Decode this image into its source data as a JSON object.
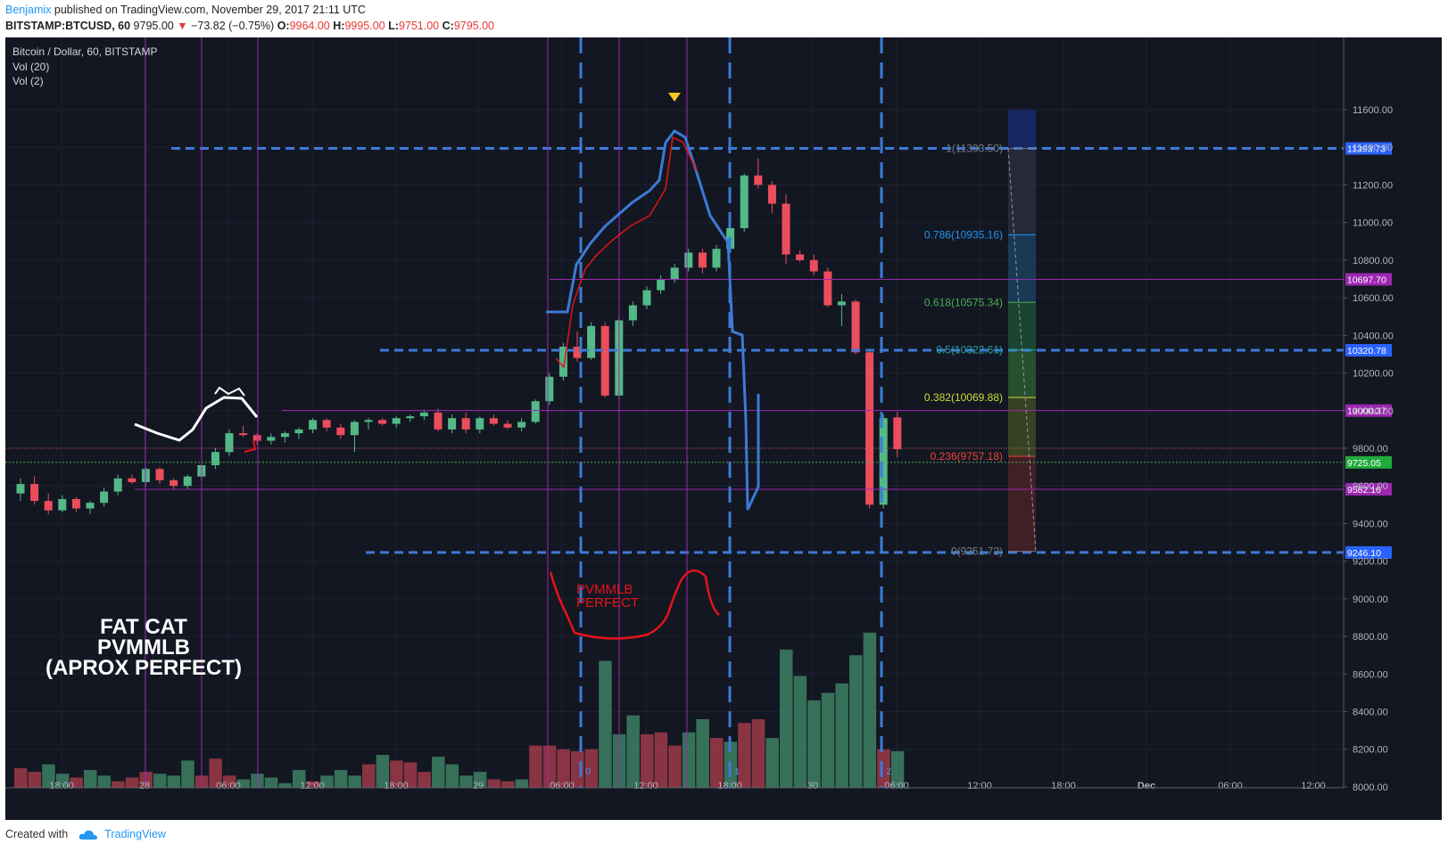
{
  "header": {
    "author": "Benjamix",
    "published": "published on TradingView.com, November 29, 2017 21:11 UTC",
    "symbol": "BITSTAMP:BTCUSD, 60",
    "last": "9795.00",
    "change": "−73.82 (−0.75%)",
    "o_label": "O:",
    "o": "9964.00",
    "h_label": "H:",
    "h": "9995.00",
    "l_label": "L:",
    "l": "9751.00",
    "c_label": "C:",
    "c": "9795.00"
  },
  "legend": {
    "title": "Bitcoin / Dollar, 60, BITSTAMP",
    "vol20": "Vol (20)",
    "vol2": "Vol (2)"
  },
  "annotation": {
    "text_lines": [
      "FAT CAT",
      "PVMMLB",
      "(APROX PERFECT)"
    ],
    "red_lines": [
      "PVMMLB",
      "PERFECT"
    ]
  },
  "footer": {
    "created_with": "Created with",
    "brand": "TradingView"
  },
  "colors": {
    "background": "#131722",
    "up": "#53b987",
    "down": "#eb4d5c",
    "guide": "#3c7ad6",
    "purple": "#9c27b0",
    "annotation_red": "#e5131a"
  },
  "chart_data": {
    "type": "candlestick",
    "title": "Bitcoin / Dollar, 60, BITSTAMP",
    "ylim": [
      7850,
      11900
    ],
    "y_ticks": [
      8000,
      8200,
      8400,
      8600,
      8800,
      9000,
      9200,
      9400,
      9600,
      9800,
      10000,
      10200,
      10400,
      10600,
      10800,
      11000,
      11200,
      11400,
      11600
    ],
    "y_tick_labels": [
      "8000.00",
      "8200.00",
      "8400.00",
      "8600.00",
      "8800.00",
      "9000.00",
      "9200.00",
      "9400.00",
      "9600.00",
      "9800.00",
      "10000.00",
      "10200.00",
      "10400.00",
      "10600.00",
      "10800.00",
      "11000.00",
      "11200.00",
      "11400.00",
      "11600.00"
    ],
    "x_tick_labels": [
      "18:00",
      "28",
      "06:00",
      "12:00",
      "18:00",
      "29",
      "06:00",
      "12:00",
      "18:00",
      "30",
      "06:00",
      "12:00",
      "18:00",
      "Dec",
      "06:00",
      "12:00"
    ],
    "candles": [
      [
        9560,
        9640,
        9520,
        9610
      ],
      [
        9610,
        9650,
        9500,
        9520
      ],
      [
        9520,
        9560,
        9450,
        9470
      ],
      [
        9470,
        9550,
        9460,
        9530
      ],
      [
        9530,
        9540,
        9460,
        9480
      ],
      [
        9480,
        9520,
        9450,
        9510
      ],
      [
        9510,
        9590,
        9490,
        9570
      ],
      [
        9570,
        9660,
        9550,
        9640
      ],
      [
        9640,
        9660,
        9610,
        9620
      ],
      [
        9620,
        9700,
        9600,
        9690
      ],
      [
        9690,
        9700,
        9610,
        9630
      ],
      [
        9630,
        9640,
        9580,
        9600
      ],
      [
        9600,
        9660,
        9580,
        9650
      ],
      [
        9650,
        9720,
        9630,
        9710
      ],
      [
        9710,
        9800,
        9690,
        9780
      ],
      [
        9780,
        9900,
        9760,
        9880
      ],
      [
        9880,
        9920,
        9860,
        9870
      ],
      [
        9870,
        9880,
        9820,
        9840
      ],
      [
        9840,
        9880,
        9820,
        9860
      ],
      [
        9860,
        9890,
        9830,
        9880
      ],
      [
        9880,
        9910,
        9850,
        9900
      ],
      [
        9900,
        9960,
        9880,
        9950
      ],
      [
        9950,
        9960,
        9890,
        9910
      ],
      [
        9910,
        9930,
        9850,
        9870
      ],
      [
        9870,
        9950,
        9780,
        9940
      ],
      [
        9940,
        9960,
        9900,
        9950
      ],
      [
        9950,
        9960,
        9920,
        9930
      ],
      [
        9930,
        9970,
        9910,
        9960
      ],
      [
        9960,
        9980,
        9940,
        9970
      ],
      [
        9970,
        10000,
        9950,
        9990
      ],
      [
        9990,
        10010,
        9890,
        9900
      ],
      [
        9900,
        9980,
        9880,
        9960
      ],
      [
        9960,
        9990,
        9880,
        9900
      ],
      [
        9900,
        9970,
        9880,
        9960
      ],
      [
        9960,
        9980,
        9920,
        9930
      ],
      [
        9930,
        9950,
        9900,
        9910
      ],
      [
        9910,
        9960,
        9890,
        9940
      ],
      [
        9940,
        10060,
        9930,
        10050
      ],
      [
        10050,
        10200,
        10030,
        10180
      ],
      [
        10180,
        10360,
        10160,
        10340
      ],
      [
        10340,
        10420,
        10260,
        10280
      ],
      [
        10280,
        10470,
        10270,
        10450
      ],
      [
        10450,
        10470,
        10070,
        10080
      ],
      [
        10080,
        10500,
        10060,
        10480
      ],
      [
        10480,
        10580,
        10450,
        10560
      ],
      [
        10560,
        10660,
        10540,
        10640
      ],
      [
        10640,
        10720,
        10620,
        10700
      ],
      [
        10700,
        10780,
        10680,
        10760
      ],
      [
        10760,
        10860,
        10740,
        10840
      ],
      [
        10840,
        10860,
        10730,
        10760
      ],
      [
        10760,
        10880,
        10740,
        10860
      ],
      [
        10860,
        10990,
        10850,
        10970
      ],
      [
        10970,
        11260,
        10950,
        11250
      ],
      [
        11250,
        11340,
        11180,
        11200
      ],
      [
        11200,
        11220,
        11050,
        11100
      ],
      [
        11100,
        11150,
        10780,
        10830
      ],
      [
        10830,
        10850,
        10790,
        10800
      ],
      [
        10800,
        10830,
        10720,
        10740
      ],
      [
        10740,
        10760,
        10550,
        10560
      ],
      [
        10560,
        10620,
        10450,
        10580
      ],
      [
        10580,
        10590,
        10300,
        10310
      ],
      [
        10310,
        10330,
        9480,
        9500
      ],
      [
        9500,
        9980,
        9480,
        9960
      ],
      [
        9964,
        9995,
        9751,
        9795
      ]
    ],
    "volume": [
      [
        8100,
        0
      ],
      [
        8080,
        0
      ],
      [
        8120,
        1
      ],
      [
        8070,
        1
      ],
      [
        8050,
        0
      ],
      [
        8090,
        1
      ],
      [
        8060,
        1
      ],
      [
        8030,
        0
      ],
      [
        8050,
        0
      ],
      [
        8080,
        0
      ],
      [
        8070,
        1
      ],
      [
        8060,
        1
      ],
      [
        8140,
        1
      ],
      [
        8060,
        0
      ],
      [
        8150,
        0
      ],
      [
        8060,
        0
      ],
      [
        8040,
        1
      ],
      [
        8070,
        1
      ],
      [
        8050,
        1
      ],
      [
        8020,
        1
      ],
      [
        8090,
        1
      ],
      [
        8030,
        0
      ],
      [
        8060,
        1
      ],
      [
        8090,
        1
      ],
      [
        8060,
        1
      ],
      [
        8120,
        0
      ],
      [
        8170,
        1
      ],
      [
        8140,
        0
      ],
      [
        8130,
        0
      ],
      [
        8080,
        0
      ],
      [
        8160,
        1
      ],
      [
        8120,
        1
      ],
      [
        8060,
        1
      ],
      [
        8080,
        1
      ],
      [
        8040,
        0
      ],
      [
        8030,
        0
      ],
      [
        8040,
        1
      ],
      [
        8220,
        0
      ],
      [
        8220,
        0
      ],
      [
        8200,
        0
      ],
      [
        8190,
        0
      ],
      [
        8200,
        0
      ],
      [
        8670,
        1
      ],
      [
        8280,
        1
      ],
      [
        8380,
        1
      ],
      [
        8280,
        0
      ],
      [
        8290,
        0
      ],
      [
        8220,
        0
      ],
      [
        8290,
        1
      ],
      [
        8360,
        1
      ],
      [
        8260,
        0
      ],
      [
        8240,
        1
      ],
      [
        8340,
        0
      ],
      [
        8360,
        0
      ],
      [
        8260,
        1
      ],
      [
        8730,
        1
      ],
      [
        8590,
        1
      ],
      [
        8460,
        1
      ],
      [
        8500,
        1
      ],
      [
        8550,
        1
      ],
      [
        8700,
        1
      ],
      [
        8820,
        1
      ],
      [
        8200,
        0
      ],
      [
        8190,
        1
      ]
    ],
    "horizontal_lines": [
      {
        "label": "11393.73",
        "value": 11393.73,
        "color": "#3c7ad6"
      },
      {
        "label": "10697.70",
        "value": 10697.7,
        "color": "#9c27b0"
      },
      {
        "label": "10320.78",
        "value": 10320.78,
        "color": "#3c7ad6"
      },
      {
        "label": "10000.37",
        "value": 10000.37,
        "color": "#9c27b0"
      },
      {
        "label": "9725.05",
        "value": 9725.05,
        "color": "#4caf50"
      },
      {
        "label": "9582.16",
        "value": 9582.16,
        "color": "#9c27b0"
      },
      {
        "label": "9246.10",
        "value": 9246.1,
        "color": "#3c7ad6"
      }
    ],
    "fib_levels": [
      {
        "label": "1(11393.50)",
        "value": 11393.5,
        "color": "#787b86"
      },
      {
        "label": "0.786(10935.16)",
        "value": 10935.16,
        "color": "#2196f3"
      },
      {
        "label": "0.618(10575.34)",
        "value": 10575.34,
        "color": "#4caf50"
      },
      {
        "label": "0.5(10322.61)",
        "value": 10322.61,
        "color": "#26a69a"
      },
      {
        "label": "0.382(10069.88)",
        "value": 10069.88,
        "color": "#cddc39"
      },
      {
        "label": "0.236(9757.18)",
        "value": 9757.18,
        "color": "#f44336"
      },
      {
        "label": "0(9251.72)",
        "value": 9251.72,
        "color": "#787b86"
      }
    ],
    "time_markers": [
      "0",
      "1",
      "2"
    ]
  }
}
